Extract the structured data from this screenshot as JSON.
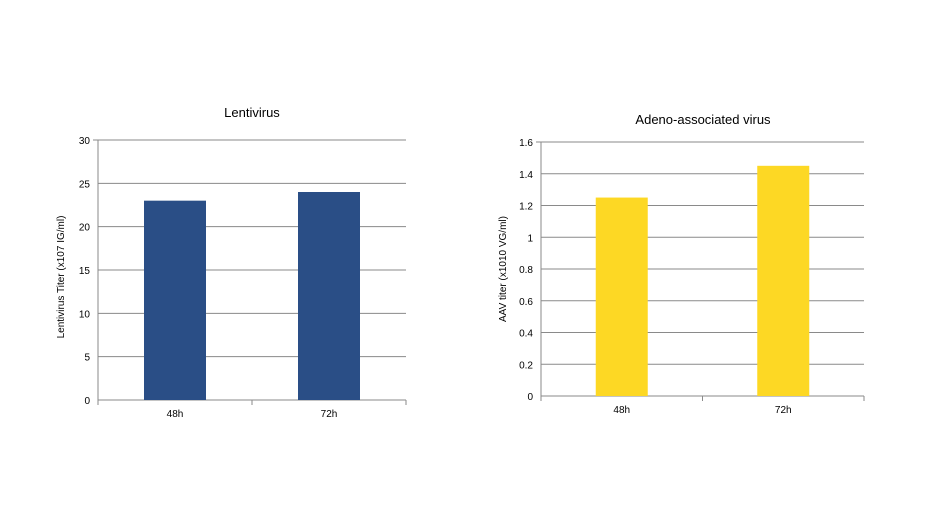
{
  "chart_data": [
    {
      "type": "bar",
      "title": "Lentivirus",
      "xlabel": "",
      "ylabel": "Lentivirus Titer (x107 IG/ml)",
      "categories": [
        "48h",
        "72h"
      ],
      "values": [
        23,
        24
      ],
      "ylim": [
        0,
        30
      ],
      "yticks": [
        0,
        5,
        10,
        15,
        20,
        25,
        30
      ],
      "grid": true,
      "legend": "none",
      "color": "#2a4e86"
    },
    {
      "type": "bar",
      "title": "Adeno-associated virus",
      "xlabel": "",
      "ylabel": "AAV titer (x1010 VG/ml)",
      "categories": [
        "48h",
        "72h"
      ],
      "values": [
        1.25,
        1.45
      ],
      "ylim": [
        0,
        1.6
      ],
      "yticks": [
        0,
        0.2,
        0.4,
        0.6,
        0.8,
        1,
        1.2,
        1.4,
        1.6
      ],
      "grid": true,
      "legend": "none",
      "color": "#fdd824"
    }
  ]
}
